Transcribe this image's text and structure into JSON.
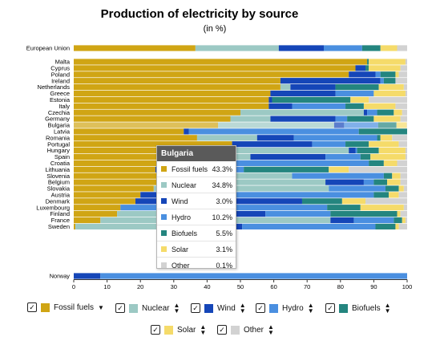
{
  "chart_data": {
    "type": "bar",
    "orientation": "horizontal",
    "stacked": true,
    "title": "Production of electricity by source",
    "subtitle": "(in %)",
    "xlim": [
      0,
      100
    ],
    "xticks": [
      0,
      10,
      20,
      30,
      40,
      50,
      60,
      70,
      80,
      90,
      100
    ],
    "categories": [
      "European Union",
      "Malta",
      "Cyprus",
      "Poland",
      "Ireland",
      "Netherlands",
      "Greece",
      "Estonia",
      "Italy",
      "Czechia",
      "Germany",
      "Bulgaria",
      "Latvia",
      "Romania",
      "Portugal",
      "Hungary",
      "Spain",
      "Croatia",
      "Lithuania",
      "Slovenia",
      "Belgium",
      "Slovakia",
      "Austria",
      "Denmark",
      "Luxembourg",
      "Finland",
      "France",
      "Sweden",
      "Norway"
    ],
    "series": [
      {
        "name": "Fossil fuels",
        "color": "#d0a514",
        "values": [
          36.5,
          88.0,
          84.5,
          82.5,
          62.0,
          62.0,
          59.0,
          58.5,
          58.5,
          50.0,
          47.0,
          43.3,
          33.0,
          37.0,
          47.5,
          33.5,
          30.0,
          26.0,
          24.5,
          31.0,
          31.5,
          24.0,
          20.0,
          18.5,
          14.0,
          13.0,
          8.0,
          0.5,
          0.0
        ]
      },
      {
        "name": "Nuclear",
        "color": "#9cc9c4",
        "values": [
          25.0,
          0.0,
          0.0,
          0.0,
          0.0,
          3.0,
          0.0,
          0.0,
          0.0,
          37.0,
          12.0,
          34.8,
          0.0,
          18.0,
          0.0,
          49.0,
          23.0,
          0.0,
          0.0,
          34.5,
          44.0,
          52.5,
          0.0,
          0.0,
          0.0,
          32.5,
          69.0,
          40.0,
          0.0
        ]
      },
      {
        "name": "Wind",
        "color": "#1546b8",
        "values": [
          13.5,
          0.0,
          3.0,
          8.0,
          30.0,
          13.5,
          19.5,
          1.0,
          7.0,
          1.0,
          19.5,
          3.0,
          1.5,
          11.0,
          24.0,
          2.0,
          22.5,
          15.0,
          16.5,
          0.0,
          11.5,
          0.0,
          10.0,
          50.0,
          0.0,
          12.0,
          7.0,
          10.0,
          8.0
        ]
      },
      {
        "name": "Hydro",
        "color": "#4a8fe0",
        "values": [
          11.5,
          0.0,
          0.0,
          1.5,
          1.0,
          0.0,
          11.5,
          0.0,
          16.0,
          3.0,
          3.5,
          10.2,
          51.0,
          25.0,
          10.0,
          0.5,
          10.5,
          47.5,
          10.0,
          27.5,
          3.0,
          17.0,
          60.0,
          0.0,
          62.0,
          19.5,
          12.0,
          40.0,
          92.0
        ]
      },
      {
        "name": "Biofuels",
        "color": "#24857f",
        "values": [
          5.5,
          0.5,
          1.0,
          4.5,
          3.5,
          13.0,
          0.0,
          23.5,
          5.5,
          5.0,
          8.0,
          5.5,
          14.5,
          1.0,
          7.0,
          6.5,
          3.0,
          4.5,
          25.5,
          2.5,
          4.0,
          4.0,
          4.5,
          12.0,
          10.0,
          20.0,
          2.5,
          6.0,
          0.0
        ]
      },
      {
        "name": "Solar",
        "color": "#f5db6a",
        "values": [
          5.0,
          11.0,
          9.5,
          1.0,
          0.0,
          7.5,
          9.5,
          5.5,
          9.5,
          2.5,
          8.0,
          3.1,
          0.0,
          3.5,
          9.0,
          8.0,
          10.5,
          4.0,
          6.0,
          2.5,
          4.0,
          1.5,
          3.0,
          7.0,
          13.0,
          1.0,
          1.0,
          1.0,
          0.0
        ]
      },
      {
        "name": "Other",
        "color": "#d2d2d2",
        "values": [
          3.0,
          0.5,
          2.0,
          2.5,
          3.5,
          1.0,
          0.5,
          11.5,
          3.5,
          1.5,
          2.0,
          0.1,
          0.0,
          4.5,
          2.5,
          0.5,
          0.5,
          3.0,
          17.5,
          2.0,
          2.0,
          1.0,
          2.5,
          12.5,
          1.0,
          2.0,
          0.5,
          2.5,
          0.0
        ]
      }
    ],
    "legend_placement": "bottom",
    "grid": false,
    "highlighted_category": "Bulgaria"
  },
  "tooltip": {
    "title": "Bulgaria",
    "rows": [
      {
        "name": "Fossil fuels",
        "value": "43.3%",
        "color": "#d0a514"
      },
      {
        "name": "Nuclear",
        "value": "34.8%",
        "color": "#9cc9c4"
      },
      {
        "name": "Wind",
        "value": "3.0%",
        "color": "#1546b8"
      },
      {
        "name": "Hydro",
        "value": "10.2%",
        "color": "#4a8fe0"
      },
      {
        "name": "Biofuels",
        "value": "5.5%",
        "color": "#24857f"
      },
      {
        "name": "Solar",
        "value": "3.1%",
        "color": "#f5db6a"
      },
      {
        "name": "Other",
        "value": "0.1%",
        "color": "#d2d2d2"
      }
    ]
  },
  "legend": {
    "items": [
      {
        "label": "Fossil fuels",
        "checked": true,
        "color": "#d0a514",
        "sort_icon": "sort-down-icon"
      },
      {
        "label": "Nuclear",
        "checked": true,
        "color": "#9cc9c4",
        "sort_icon": "sort-both-icon"
      },
      {
        "label": "Wind",
        "checked": true,
        "color": "#1546b8",
        "sort_icon": "sort-both-icon"
      },
      {
        "label": "Hydro",
        "checked": true,
        "color": "#4a8fe0",
        "sort_icon": "sort-both-icon"
      },
      {
        "label": "Biofuels",
        "checked": true,
        "color": "#24857f",
        "sort_icon": "sort-both-icon"
      },
      {
        "label": "Solar",
        "checked": true,
        "color": "#f5db6a",
        "sort_icon": "sort-both-icon"
      },
      {
        "label": "Other",
        "checked": true,
        "color": "#d2d2d2",
        "sort_icon": "sort-both-icon"
      }
    ]
  }
}
